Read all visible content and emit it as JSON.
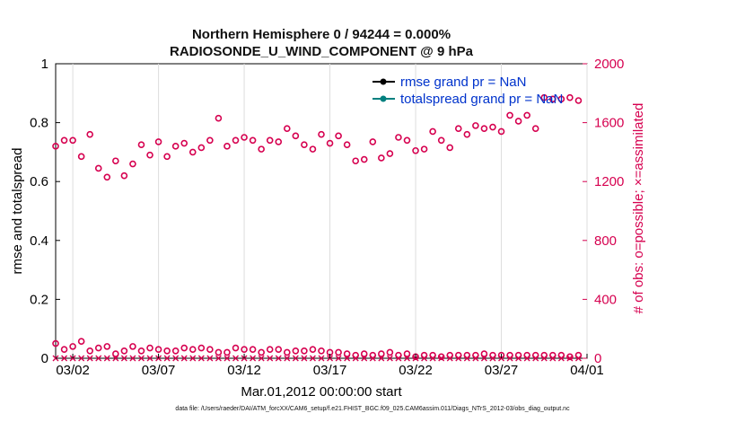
{
  "chart_data": {
    "type": "scatter",
    "title": [
      "Northern Hemisphere 0 / 94244 = 0.000%",
      "RADIOSONDE_U_WIND_COMPONENT @ 9 hPa"
    ],
    "xlabel": "Mar.01,2012 00:00:00 start",
    "ylabel_left": "rmse and totalspread",
    "ylabel_right": "# of obs: o=possible; ×=assimilated",
    "x_tick_labels": [
      "03/02",
      "03/07",
      "03/12",
      "03/17",
      "03/22",
      "03/27",
      "04/01"
    ],
    "x_tick_days": [
      1,
      6,
      11,
      16,
      21,
      26,
      31
    ],
    "xlim": [
      0,
      31
    ],
    "ylim_left": [
      0,
      1
    ],
    "yticks_left": [
      "0",
      "0.2",
      "0.4",
      "0.6",
      "0.8",
      "1"
    ],
    "yticks_left_values": [
      0,
      0.2,
      0.4,
      0.6,
      0.8,
      1
    ],
    "ylim_right": [
      0,
      2000
    ],
    "yticks_right": [
      "0",
      "400",
      "800",
      "1200",
      "1600",
      "2000"
    ],
    "yticks_right_values": [
      0,
      400,
      800,
      1200,
      1600,
      2000
    ],
    "legend": [
      {
        "label": "rmse grand pr = NaN",
        "color": "#000000"
      },
      {
        "label": "totalspread grand pr = NaN",
        "color": "#00807f"
      }
    ],
    "series": [
      {
        "name": "possible obs (00Z)",
        "marker": "circle",
        "color": "#d6004f",
        "x": [
          0.0,
          0.5,
          1.0,
          1.5,
          2.0,
          2.5,
          3.0,
          3.5,
          4.0,
          4.5,
          5.0,
          5.5,
          6.0,
          6.5,
          7.0,
          7.5,
          8.0,
          8.5,
          9.0,
          9.5,
          10.0,
          10.5,
          11.0,
          11.5,
          12.0,
          12.5,
          13.0,
          13.5,
          14.0,
          14.5,
          15.0,
          15.5,
          16.0,
          16.5,
          17.0,
          17.5,
          18.0,
          18.5,
          19.0,
          19.5,
          20.0,
          20.5,
          21.0,
          21.5,
          22.0,
          22.5,
          23.0,
          23.5,
          24.0,
          24.5,
          25.0,
          25.5,
          26.0,
          26.5,
          27.0,
          27.5,
          28.0,
          28.5,
          29.0,
          29.5,
          30.0,
          30.5
        ],
        "values": [
          1440,
          1480,
          1480,
          1370,
          1520,
          1290,
          1230,
          1340,
          1240,
          1320,
          1450,
          1380,
          1470,
          1370,
          1440,
          1460,
          1400,
          1430,
          1480,
          1630,
          1440,
          1480,
          1500,
          1480,
          1420,
          1480,
          1470,
          1560,
          1510,
          1450,
          1420,
          1520,
          1460,
          1510,
          1450,
          1340,
          1350,
          1470,
          1360,
          1390,
          1500,
          1480,
          1410,
          1420,
          1540,
          1480,
          1430,
          1560,
          1520,
          1580,
          1560,
          1570,
          1540,
          1650,
          1610,
          1650,
          1560,
          1770,
          1760,
          1760,
          1770,
          1750
        ]
      },
      {
        "name": "possible obs (12Z)",
        "marker": "circle",
        "color": "#d6004f",
        "x": [
          0.0,
          0.5,
          1.0,
          1.5,
          2.0,
          2.5,
          3.0,
          3.5,
          4.0,
          4.5,
          5.0,
          5.5,
          6.0,
          6.5,
          7.0,
          7.5,
          8.0,
          8.5,
          9.0,
          9.5,
          10.0,
          10.5,
          11.0,
          11.5,
          12.0,
          12.5,
          13.0,
          13.5,
          14.0,
          14.5,
          15.0,
          15.5,
          16.0,
          16.5,
          17.0,
          17.5,
          18.0,
          18.5,
          19.0,
          19.5,
          20.0,
          20.5,
          21.0,
          21.5,
          22.0,
          22.5,
          23.0,
          23.5,
          24.0,
          24.5,
          25.0,
          25.5,
          26.0,
          26.5,
          27.0,
          27.5,
          28.0,
          28.5,
          29.0,
          29.5,
          30.0,
          30.5
        ],
        "values": [
          100,
          60,
          80,
          115,
          50,
          70,
          80,
          30,
          50,
          80,
          50,
          70,
          60,
          50,
          50,
          70,
          60,
          70,
          60,
          40,
          40,
          70,
          60,
          60,
          40,
          60,
          60,
          40,
          50,
          50,
          60,
          50,
          40,
          40,
          30,
          20,
          30,
          20,
          30,
          40,
          20,
          30,
          10,
          20,
          20,
          10,
          20,
          20,
          20,
          20,
          30,
          20,
          20,
          20,
          20,
          20,
          20,
          20,
          20,
          20,
          10,
          20
        ]
      },
      {
        "name": "assimilated obs",
        "marker": "x",
        "color": "#d6004f",
        "x": [
          0.0,
          0.5,
          1.0,
          1.5,
          2.0,
          2.5,
          3.0,
          3.5,
          4.0,
          4.5,
          5.0,
          5.5,
          6.0,
          6.5,
          7.0,
          7.5,
          8.0,
          8.5,
          9.0,
          9.5,
          10.0,
          10.5,
          11.0,
          11.5,
          12.0,
          12.5,
          13.0,
          13.5,
          14.0,
          14.5,
          15.0,
          15.5,
          16.0,
          16.5,
          17.0,
          17.5,
          18.0,
          18.5,
          19.0,
          19.5,
          20.0,
          20.5,
          21.0,
          21.5,
          22.0,
          22.5,
          23.0,
          23.5,
          24.0,
          24.5,
          25.0,
          25.5,
          26.0,
          26.5,
          27.0,
          27.5,
          28.0,
          28.5,
          29.0,
          29.5,
          30.0,
          30.5
        ],
        "values": [
          0,
          0,
          0,
          0,
          0,
          0,
          0,
          0,
          0,
          0,
          0,
          0,
          0,
          0,
          0,
          0,
          0,
          0,
          0,
          0,
          0,
          0,
          0,
          0,
          0,
          0,
          0,
          0,
          0,
          0,
          0,
          0,
          0,
          0,
          0,
          0,
          0,
          0,
          0,
          0,
          0,
          0,
          0,
          0,
          0,
          0,
          0,
          0,
          0,
          0,
          0,
          0,
          0,
          0,
          0,
          0,
          0,
          0,
          0,
          0,
          0,
          0
        ]
      }
    ]
  },
  "footer_text": "data file: /Users/raeder/DAI/ATM_forcXX/CAM6_setup/f.e21.FHIST_BGC.f09_025.CAM6assim.011/Diags_NTrS_2012-03/obs_diag_output.nc",
  "colors": {
    "left_axis": "#000000",
    "right_axis": "#d6004f",
    "legend_text": "#0033cc",
    "rmse": "#000000",
    "totalspread": "#00807f"
  }
}
